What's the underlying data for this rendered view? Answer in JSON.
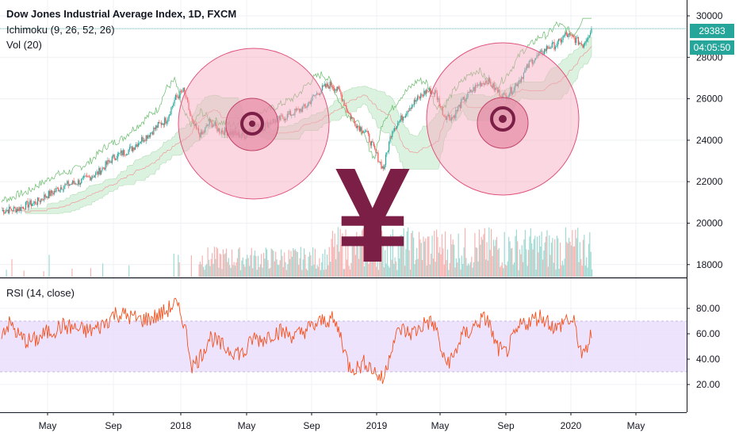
{
  "header": {
    "title": "Dow Jones Industrial Average Index, 1D, FXCM",
    "indicator1": "Ichimoku (9, 26, 52, 26)",
    "indicator2": "Vol (20)"
  },
  "price_tag": {
    "value": "29383",
    "countdown": "04:05:50"
  },
  "rsi_panel": {
    "label": "RSI (14, close)"
  },
  "overlay": {
    "symbol": "¥",
    "symbol_color": "#7b1f47",
    "circle_color": "#f7a8bd"
  },
  "colors": {
    "up": "#26a69a",
    "down": "#ef5350",
    "rsi_line": "#f4511e",
    "rsi_band": "#eadcfb",
    "cloud_fill": "#d6f0db",
    "volume_up": "#9fd9d2",
    "volume_down": "#f6b3b2"
  },
  "chart_data": [
    {
      "type": "line",
      "title": "Dow Jones Industrial Average Index, 1D, FXCM",
      "y_ticks": [
        "30000",
        "28000",
        "26000",
        "24000",
        "22000",
        "20000",
        "18000"
      ],
      "ylim": [
        17600,
        30600
      ],
      "x_ticks": [
        "May",
        "Sep",
        "2018",
        "May",
        "Sep",
        "2019",
        "May",
        "Sep",
        "2020",
        "May"
      ],
      "series": [
        {
          "values": [
            20600,
            20650,
            20700,
            20900,
            21000,
            21300,
            21500,
            21800,
            21900,
            22000,
            22200,
            22400,
            22800,
            23200,
            23400,
            23600,
            24000,
            24300,
            24700,
            25000,
            26000,
            26400,
            24800,
            24200,
            24900,
            24500,
            24400,
            24300,
            24200,
            24700,
            24600,
            24900,
            25000,
            25200,
            25400,
            25600,
            26100,
            26500,
            26700,
            26300,
            25300,
            24700,
            24400,
            23500,
            22600,
            24500,
            25000,
            25600,
            26000,
            26400,
            26300,
            25200,
            25100,
            25800,
            26300,
            26700,
            26900,
            26400,
            26100,
            26500,
            27100,
            27800,
            28100,
            28500,
            28600,
            29100,
            28900,
            28600,
            29383
          ]
        }
      ],
      "grid": true
    },
    {
      "type": "line",
      "title": "RSI (14, close)",
      "y_ticks": [
        "80.00",
        "60.00",
        "40.00",
        "20.00"
      ],
      "ylim": [
        15,
        92
      ],
      "band": [
        30,
        70
      ],
      "series": [
        {
          "values": [
            62,
            68,
            58,
            54,
            55,
            60,
            63,
            66,
            65,
            63,
            62,
            64,
            69,
            76,
            75,
            73,
            71,
            72,
            74,
            78,
            84,
            70,
            34,
            43,
            58,
            52,
            48,
            46,
            44,
            57,
            55,
            60,
            62,
            60,
            58,
            63,
            66,
            70,
            72,
            61,
            35,
            33,
            38,
            30,
            23,
            52,
            64,
            60,
            63,
            70,
            66,
            38,
            40,
            58,
            62,
            70,
            72,
            50,
            44,
            56,
            68,
            70,
            74,
            70,
            63,
            72,
            68,
            40,
            60
          ]
        }
      ],
      "grid": true
    }
  ]
}
